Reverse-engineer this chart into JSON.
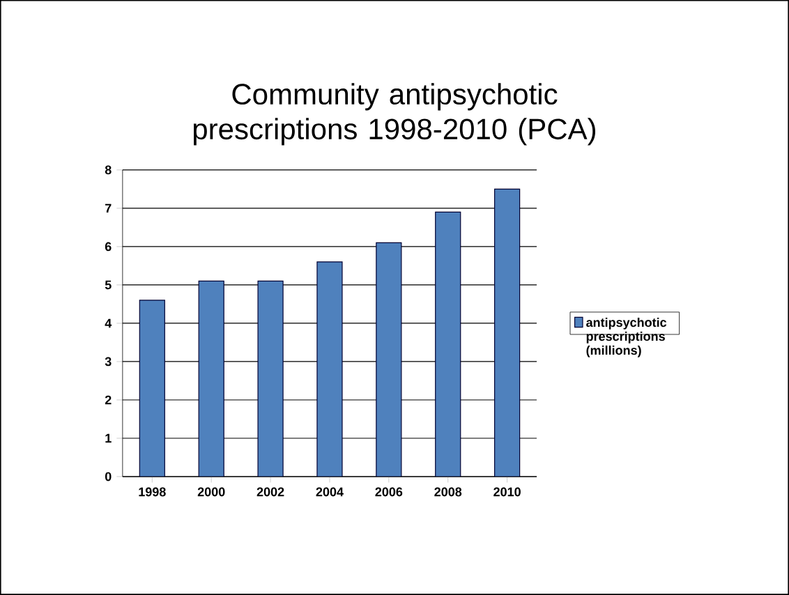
{
  "chart_data": {
    "type": "bar",
    "title": "Community antipsychotic prescriptions 1998-2010 (PCA)",
    "categories": [
      "1998",
      "2000",
      "2002",
      "2004",
      "2006",
      "2008",
      "2010"
    ],
    "series": [
      {
        "name": "antipsychotic prescriptions (millions)",
        "color": "#4f81bd",
        "values": [
          4.6,
          5.1,
          5.1,
          5.6,
          6.1,
          6.9,
          7.5
        ]
      }
    ],
    "ylim": [
      0,
      8
    ],
    "yticks": [
      0,
      1,
      2,
      3,
      4,
      5,
      6,
      7,
      8
    ],
    "grid": "y",
    "legend": "right"
  }
}
